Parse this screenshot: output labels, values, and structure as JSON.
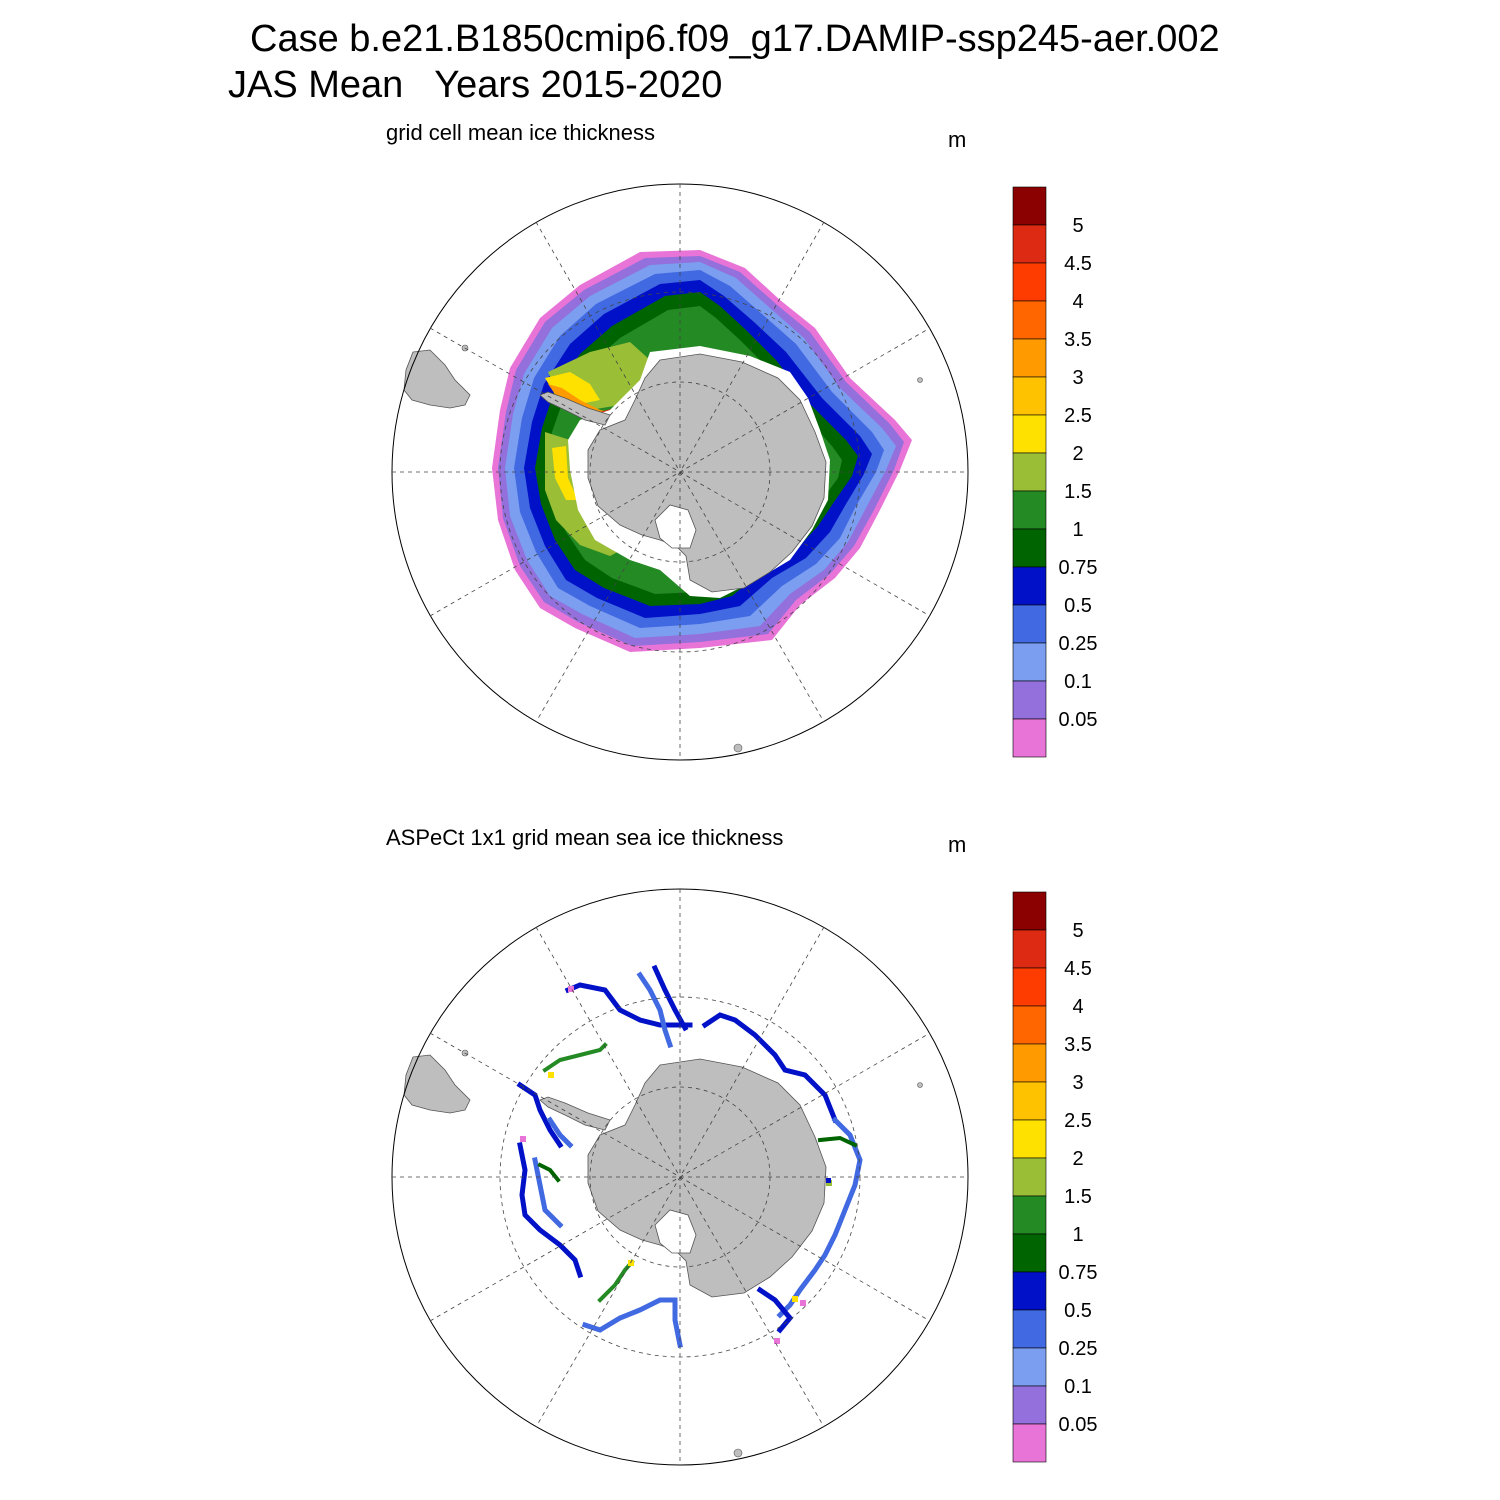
{
  "figure": {
    "title_line1": "Case b.e21.B1850cmip6.f09_g17.DAMIP-ssp245-aer.002",
    "title_line2": "JAS Mean   Years 2015-2020"
  },
  "colorbar": {
    "levels": [
      "5",
      "4.5",
      "4",
      "3.5",
      "3",
      "2.5",
      "2",
      "1.5",
      "1",
      "0.75",
      "0.5",
      "0.25",
      "0.1",
      "0.05"
    ],
    "colors": [
      "#8b0000",
      "#dd2a12",
      "#ff3c00",
      "#ff6600",
      "#ff9a00",
      "#ffc200",
      "#ffe100",
      "#9abe36",
      "#248a24",
      "#006400",
      "#0011c8",
      "#4169e1",
      "#7b9ef0",
      "#9370db",
      "#e874d8"
    ]
  },
  "panels": [
    {
      "title": "grid cell mean ice thickness",
      "units": "m",
      "map_type": "south polar stereographic",
      "field": "model sea ice thickness"
    },
    {
      "title": "ASPeCt 1x1 grid mean sea ice thickness",
      "units": "m",
      "map_type": "south polar stereographic",
      "field": "ship-based observation tracks"
    }
  ]
}
